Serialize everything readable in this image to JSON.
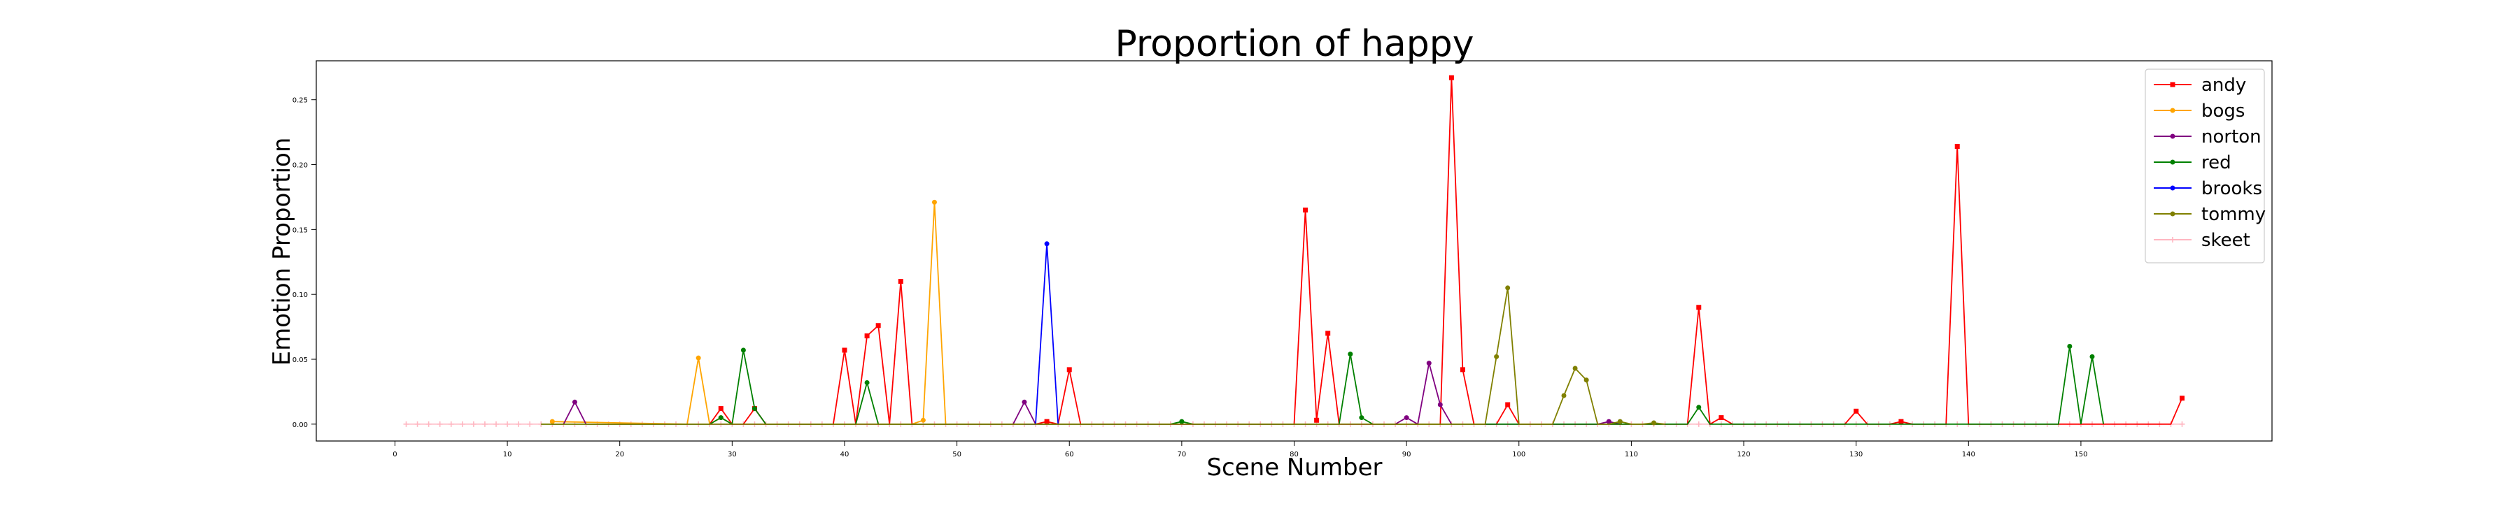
{
  "chart_data": {
    "type": "line",
    "title": "Proportion of happy",
    "xlabel": "Scene Number",
    "ylabel": "Emotion Proportion",
    "xlim": [
      -7,
      167
    ],
    "ylim": [
      -0.013,
      0.28
    ],
    "xticks": [
      0,
      10,
      20,
      30,
      40,
      50,
      60,
      70,
      80,
      90,
      100,
      110,
      120,
      130,
      140,
      150
    ],
    "yticks": [
      0.0,
      0.05,
      0.1,
      0.15,
      0.2,
      0.25
    ],
    "ytick_labels": [
      "0.00",
      "0.05",
      "0.10",
      "0.15",
      "0.20",
      "0.25"
    ],
    "grid": false,
    "legend_position": "top-right",
    "series": [
      {
        "name": "andy",
        "color": "#ff0000",
        "marker": "square",
        "data": [
          [
            28,
            0
          ],
          [
            29,
            0.012
          ],
          [
            30,
            0
          ],
          [
            31,
            0
          ],
          [
            32,
            0.012
          ],
          [
            33,
            0
          ],
          [
            39,
            0
          ],
          [
            40,
            0.057
          ],
          [
            41,
            0
          ],
          [
            42,
            0.068
          ],
          [
            43,
            0.076
          ],
          [
            44,
            0
          ],
          [
            45,
            0.11
          ],
          [
            46,
            0
          ],
          [
            47,
            0
          ],
          [
            48,
            0
          ],
          [
            49,
            0
          ],
          [
            55,
            0
          ],
          [
            56,
            0
          ],
          [
            57,
            0
          ],
          [
            58,
            0.002
          ],
          [
            59,
            0
          ],
          [
            60,
            0.042
          ],
          [
            61,
            0
          ],
          [
            80,
            0
          ],
          [
            81,
            0.165
          ],
          [
            82,
            0.003
          ],
          [
            83,
            0.07
          ],
          [
            84,
            0
          ],
          [
            85,
            0
          ],
          [
            86,
            0
          ],
          [
            87,
            0
          ],
          [
            88,
            0
          ],
          [
            89,
            0
          ],
          [
            90,
            0
          ],
          [
            91,
            0
          ],
          [
            92,
            0
          ],
          [
            93,
            0
          ],
          [
            94,
            0.267
          ],
          [
            95,
            0.042
          ],
          [
            96,
            0
          ],
          [
            97,
            0
          ],
          [
            98,
            0
          ],
          [
            99,
            0.015
          ],
          [
            100,
            0
          ],
          [
            113,
            0
          ],
          [
            114,
            0
          ],
          [
            115,
            0
          ],
          [
            116,
            0.09
          ],
          [
            117,
            0
          ],
          [
            118,
            0.005
          ],
          [
            119,
            0
          ],
          [
            129,
            0
          ],
          [
            130,
            0.01
          ],
          [
            131,
            0
          ],
          [
            133,
            0
          ],
          [
            134,
            0.002
          ],
          [
            135,
            0
          ],
          [
            138,
            0
          ],
          [
            139,
            0.214
          ],
          [
            140,
            0
          ],
          [
            158,
            0
          ],
          [
            159,
            0.02
          ]
        ]
      },
      {
        "name": "bogs",
        "color": "#ffa500",
        "marker": "dot",
        "data": [
          [
            14,
            0.002
          ],
          [
            26,
            0
          ],
          [
            27,
            0.051
          ],
          [
            28,
            0
          ],
          [
            29,
            0.005
          ],
          [
            30,
            0
          ],
          [
            46,
            0
          ],
          [
            47,
            0.003
          ],
          [
            48,
            0.171
          ],
          [
            49,
            0
          ]
        ]
      },
      {
        "name": "norton",
        "color": "#800080",
        "marker": "dot",
        "data": [
          [
            14,
            0
          ],
          [
            15,
            0
          ],
          [
            16,
            0.017
          ],
          [
            17,
            0
          ],
          [
            55,
            0
          ],
          [
            56,
            0.017
          ],
          [
            57,
            0
          ],
          [
            89,
            0
          ],
          [
            90,
            0.005
          ],
          [
            91,
            0
          ],
          [
            92,
            0.047
          ],
          [
            93,
            0.015
          ],
          [
            94,
            0
          ],
          [
            107,
            0
          ],
          [
            108,
            0.002
          ],
          [
            109,
            0
          ]
        ]
      },
      {
        "name": "red",
        "color": "#008000",
        "marker": "dot",
        "data": [
          [
            13,
            0
          ],
          [
            14,
            0
          ],
          [
            15,
            0
          ],
          [
            28,
            0
          ],
          [
            29,
            0.005
          ],
          [
            30,
            0
          ],
          [
            31,
            0.057
          ],
          [
            32,
            0.012
          ],
          [
            33,
            0
          ],
          [
            41,
            0
          ],
          [
            42,
            0.032
          ],
          [
            43,
            0
          ],
          [
            69,
            0
          ],
          [
            70,
            0.002
          ],
          [
            71,
            0
          ],
          [
            84,
            0
          ],
          [
            85,
            0.054
          ],
          [
            86,
            0.005
          ],
          [
            87,
            0
          ],
          [
            115,
            0
          ],
          [
            116,
            0.013
          ],
          [
            117,
            0
          ],
          [
            118,
            0
          ],
          [
            148,
            0
          ],
          [
            149,
            0.06
          ],
          [
            150,
            0
          ],
          [
            151,
            0.052
          ],
          [
            152,
            0
          ]
        ]
      },
      {
        "name": "brooks",
        "color": "#0000ff",
        "marker": "dot",
        "data": [
          [
            56,
            0
          ],
          [
            57,
            0
          ],
          [
            58,
            0.139
          ],
          [
            59,
            0
          ]
        ]
      },
      {
        "name": "tommy",
        "color": "#808000",
        "marker": "dot",
        "data": [
          [
            13,
            0
          ],
          [
            14,
            0
          ],
          [
            15,
            0
          ],
          [
            96,
            0
          ],
          [
            97,
            0
          ],
          [
            98,
            0.052
          ],
          [
            99,
            0.105
          ],
          [
            100,
            0
          ],
          [
            103,
            0
          ],
          [
            104,
            0.022
          ],
          [
            105,
            0.043
          ],
          [
            106,
            0.034
          ],
          [
            107,
            0
          ],
          [
            108,
            0
          ],
          [
            109,
            0.002
          ],
          [
            110,
            0
          ],
          [
            111,
            0
          ],
          [
            112,
            0.001
          ],
          [
            113,
            0
          ]
        ]
      },
      {
        "name": "skeet",
        "color": "#ffb6c1",
        "marker": "plus",
        "data": [
          [
            1,
            0
          ],
          [
            159,
            0
          ]
        ]
      }
    ]
  }
}
